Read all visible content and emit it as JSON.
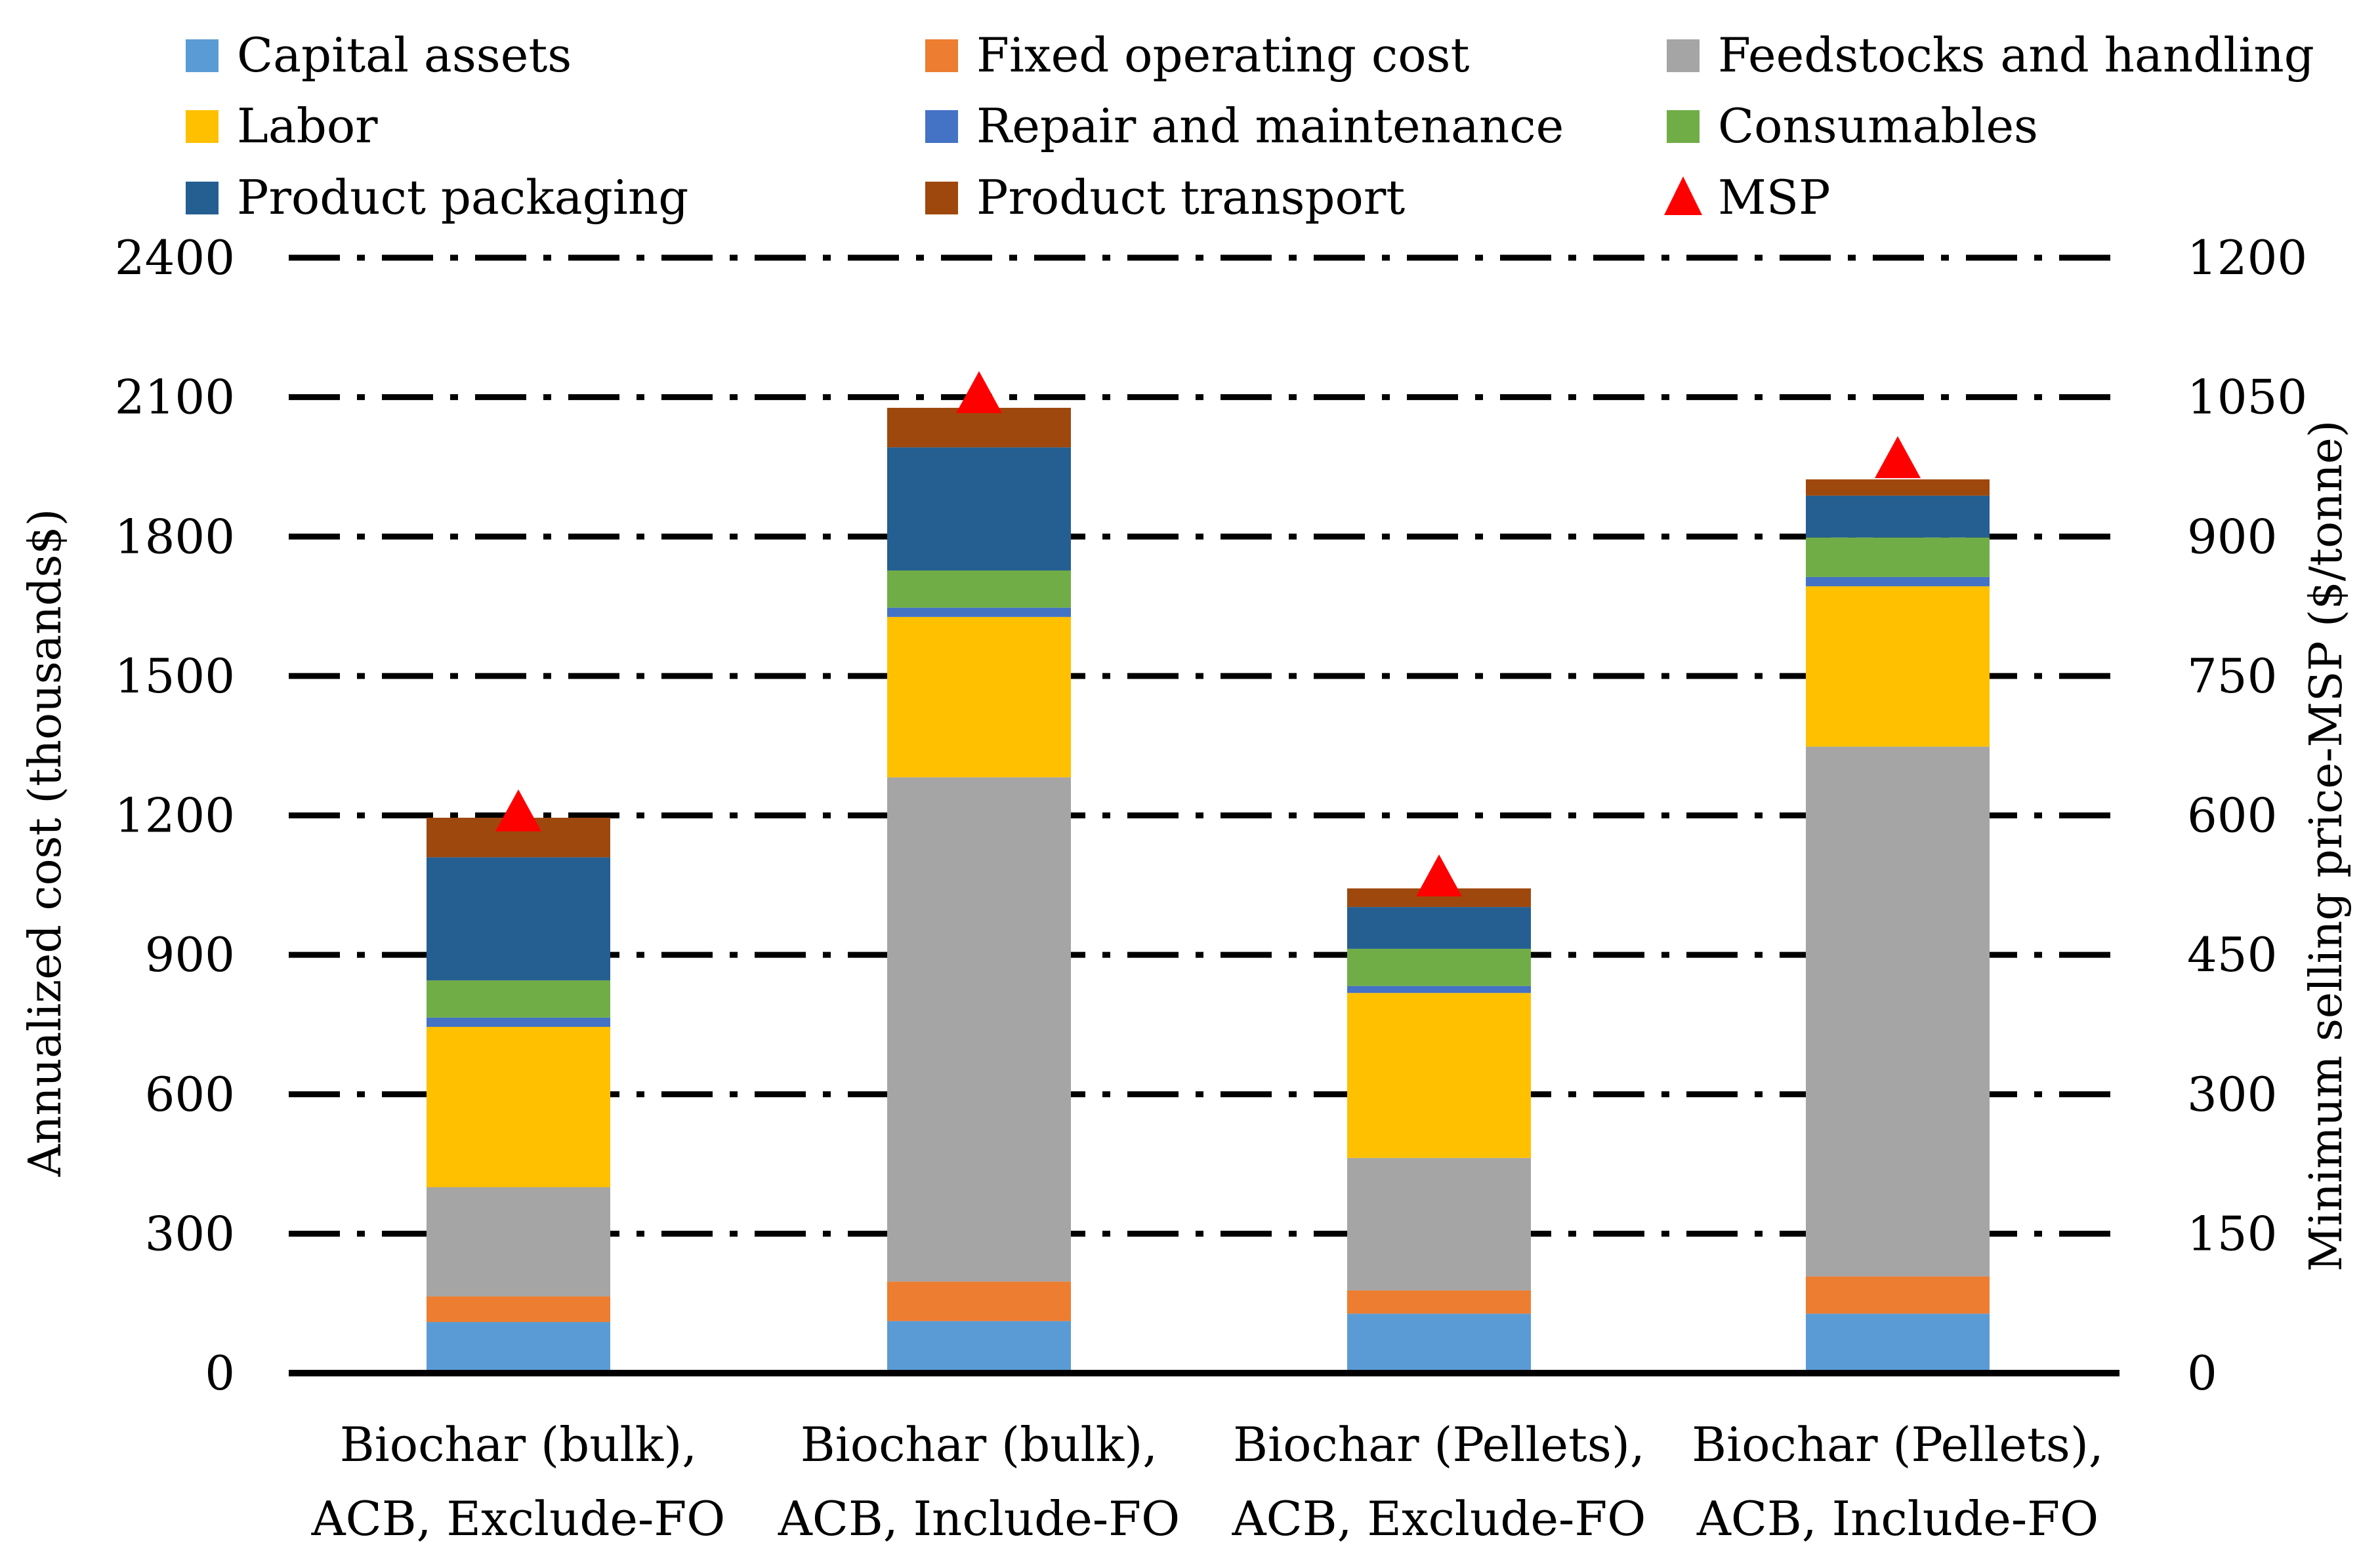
{
  "chart_data": {
    "type": "bar",
    "stacked": true,
    "categories": [
      [
        "Biochar (bulk),",
        "ACB, Exclude-FO"
      ],
      [
        "Biochar (bulk),",
        "ACB, Include-FO"
      ],
      [
        "Biochar (Pellets),",
        "ACB, Exclude-FO"
      ],
      [
        "Biochar (Pellets),",
        "ACB, Include-FO"
      ]
    ],
    "ylabel": "Annualized cost (thousands$)",
    "y2label": "Minimum selling price-MSP ($/tonne)",
    "ylim": [
      0,
      2400
    ],
    "y2lim": [
      0,
      1200
    ],
    "yticks": [
      "0",
      "300",
      "600",
      "900",
      "1200",
      "1500",
      "1800",
      "2100",
      "2400"
    ],
    "y2ticks": [
      "0",
      "150",
      "300",
      "450",
      "600",
      "750",
      "900",
      "1050",
      "1200"
    ],
    "grid": true,
    "legend_position": "top",
    "series": [
      {
        "name": "Capital assets",
        "color": "#5B9BD5",
        "values": [
          110,
          112,
          128,
          128
        ]
      },
      {
        "name": "Fixed operating cost",
        "color": "#ED7D31",
        "values": [
          55,
          85,
          50,
          80
        ]
      },
      {
        "name": "Feedstocks and handling",
        "color": "#A5A5A5",
        "values": [
          235,
          1085,
          285,
          1140
        ]
      },
      {
        "name": "Labor",
        "color": "#FFC000",
        "values": [
          345,
          345,
          355,
          345
        ]
      },
      {
        "name": "Repair and maintenance",
        "color": "#4472C4",
        "values": [
          20,
          20,
          15,
          20
        ]
      },
      {
        "name": "Consumables",
        "color": "#70AD47",
        "values": [
          80,
          80,
          80,
          85
        ]
      },
      {
        "name": "Product packaging",
        "color": "#255E91",
        "values": [
          265,
          265,
          90,
          90
        ]
      },
      {
        "name": "Product transport",
        "color": "#9E480E",
        "values": [
          85,
          85,
          40,
          35
        ]
      }
    ],
    "msp": {
      "name": "MSP",
      "color": "#FF0000",
      "marker": "triangle",
      "axis": "secondary",
      "values": [
        600,
        1050,
        530,
        980
      ]
    }
  }
}
